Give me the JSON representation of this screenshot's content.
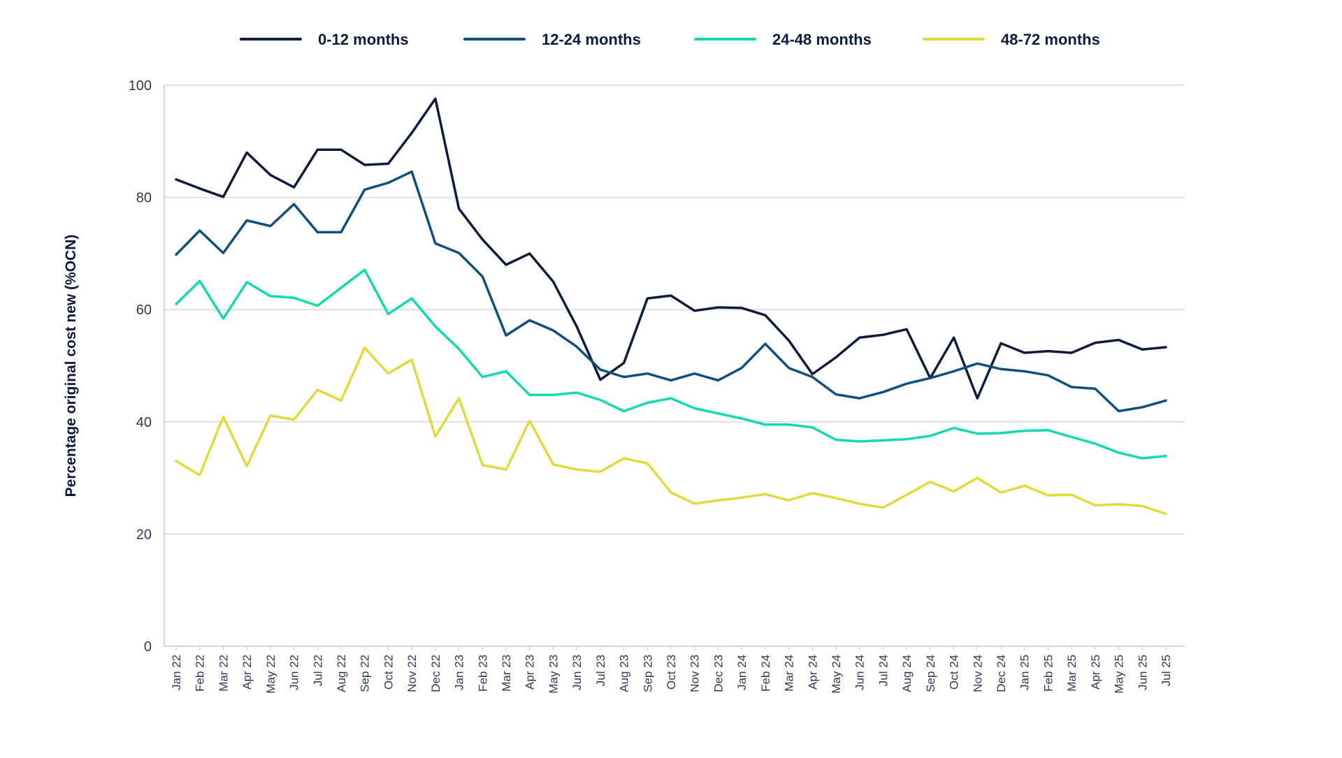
{
  "chart_data": {
    "type": "line",
    "title": "",
    "xlabel": "",
    "ylabel": "Percentage original cost new (%OCN)",
    "ylim": [
      0,
      100
    ],
    "yticks": [
      0,
      20,
      40,
      60,
      80,
      100
    ],
    "grid": true,
    "legend_position": "top-center",
    "categories": [
      "Jan 22",
      "Feb 22",
      "Mar 22",
      "Apr 22",
      "May 22",
      "Jun 22",
      "Jul 22",
      "Aug 22",
      "Sep 22",
      "Oct 22",
      "Nov 22",
      "Dec 22",
      "Jan 23",
      "Feb 23",
      "Mar 23",
      "Apr 23",
      "May 23",
      "Jun 23",
      "Jul 23",
      "Aug 23",
      "Sep 23",
      "Oct 23",
      "Nov 23",
      "Dec 23",
      "Jan 24",
      "Feb 24",
      "Mar 24",
      "Apr 24",
      "May 24",
      "Jun 24",
      "Jul 24",
      "Aug 24",
      "Sep 24",
      "Oct 24",
      "Nov 24",
      "Dec 24",
      "Jan 25",
      "Feb 25",
      "Mar 25",
      "Apr 25",
      "May 25",
      "Jun 25",
      "Jul 25"
    ],
    "series": [
      {
        "name": "0-12 months",
        "color": "#0d1b3d",
        "values": [
          83.2,
          81.6,
          80.1,
          88.0,
          84.0,
          81.8,
          88.5,
          88.5,
          85.8,
          86.0,
          91.5,
          97.6,
          78.0,
          72.5,
          68.0,
          70.0,
          65.0,
          57.0,
          47.5,
          50.5,
          62.0,
          62.5,
          59.8,
          60.4,
          60.3,
          59.0,
          54.5,
          48.5,
          51.5,
          55.0,
          55.5,
          56.5,
          47.8,
          55.0,
          44.2,
          54.0,
          52.3,
          52.6,
          52.3,
          54.1,
          54.6,
          52.9,
          53.3
        ]
      },
      {
        "name": "12-24 months",
        "color": "#0e5079",
        "values": [
          69.8,
          74.1,
          70.1,
          75.9,
          74.9,
          78.8,
          73.8,
          73.8,
          81.4,
          82.6,
          84.6,
          71.8,
          70.1,
          65.9,
          55.4,
          58.1,
          56.3,
          53.4,
          49.3,
          48.0,
          48.6,
          47.4,
          48.6,
          47.4,
          49.6,
          53.9,
          49.6,
          48.0,
          44.9,
          44.2,
          45.3,
          46.8,
          47.8,
          49.0,
          50.4,
          49.4,
          49.0,
          48.3,
          46.2,
          45.9,
          41.9,
          42.6,
          43.8
        ]
      },
      {
        "name": "24-48 months",
        "color": "#12d9b0",
        "values": [
          61.0,
          65.1,
          58.4,
          64.9,
          62.4,
          62.1,
          60.7,
          63.9,
          67.1,
          59.2,
          62.0,
          57.0,
          53.0,
          48.0,
          49.0,
          44.8,
          44.8,
          45.2,
          43.9,
          41.9,
          43.4,
          44.2,
          42.4,
          41.5,
          40.6,
          39.5,
          39.5,
          39.0,
          36.8,
          36.5,
          36.7,
          36.9,
          37.5,
          38.9,
          37.9,
          38.0,
          38.4,
          38.5,
          37.3,
          36.1,
          34.5,
          33.5,
          33.9
        ]
      },
      {
        "name": "48-72 months",
        "color": "#e3d93a",
        "values": [
          33.0,
          30.5,
          40.9,
          32.1,
          41.1,
          40.4,
          45.7,
          43.8,
          53.2,
          48.6,
          51.1,
          37.4,
          44.2,
          32.3,
          31.5,
          40.2,
          32.4,
          31.5,
          31.1,
          33.5,
          32.6,
          27.4,
          25.4,
          26.0,
          26.5,
          27.1,
          26.0,
          27.3,
          26.4,
          25.4,
          24.7,
          27.0,
          29.3,
          27.6,
          30.0,
          27.4,
          28.6,
          26.9,
          27.0,
          25.1,
          25.3,
          25.0,
          23.6
        ]
      }
    ]
  }
}
